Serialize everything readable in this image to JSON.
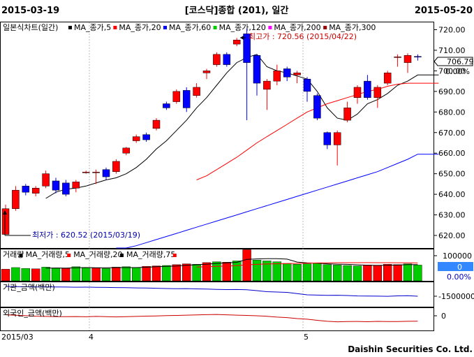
{
  "header": {
    "date_left": "2015-03-19",
    "title": "[코스닥]종합 (201), 일간",
    "date_right": "2015-05-20"
  },
  "price_panel": {
    "title": "일본식차트(일간)",
    "legend": [
      {
        "label": "MA_종가,5",
        "color": "#000000"
      },
      {
        "label": "MA_종가,20",
        "color": "#ff0000"
      },
      {
        "label": "MA_종가,60",
        "color": "#0000ff"
      },
      {
        "label": "MA_종가,120",
        "color": "#00cc00"
      },
      {
        "label": "MA_종가,200",
        "color": "#ff00ff"
      },
      {
        "label": "MA_종가,300",
        "color": "#990000"
      }
    ],
    "high_note": "최고가 : 720.56 (2015/04/22)",
    "low_note": "최저가 : 620.52 (2015/03/19)",
    "last_price": "706.79",
    "change_pct": "0.00%",
    "y_ticks": [
      "720.00",
      "710.00",
      "700.00",
      "690.00",
      "680.00",
      "670.00",
      "660.00",
      "650.00",
      "640.00",
      "630.00",
      "620.00"
    ]
  },
  "volume_panel": {
    "legend": [
      {
        "label": "거래량",
        "color": "#000000"
      },
      {
        "label": "MA_거래량,5",
        "color": "#ff0000"
      },
      {
        "label": "MA_거래량,20",
        "color": "#000000"
      },
      {
        "label": "MA_거래량,75",
        "color": "#ff0000"
      }
    ],
    "y_tick": "100000",
    "value": "0",
    "pct": "0.00%"
  },
  "foreign_panel": {
    "title": "기관_금액(백만)",
    "y_tick": "-1500000"
  },
  "foreigner_panel": {
    "title": "외국인_금액(백만)",
    "y_tick": "0"
  },
  "x_axis": [
    "2015/03",
    "4",
    "5"
  ],
  "footer": {
    "brand": "Daishin Securities Co. Ltd."
  },
  "colors": {
    "up": "#ff0000",
    "down": "#0000ff",
    "volume_up": "#ff0000",
    "volume_down": "#00cc00",
    "value_highlight": "#3388ff"
  },
  "chart_data": {
    "type": "candlestick",
    "title": "[코스닥]종합 (201), 일간",
    "ylim": [
      615,
      725
    ],
    "candles": [
      {
        "o": 620.5,
        "c": 633.0,
        "h": 635.0,
        "l": 620.5
      },
      {
        "o": 633.0,
        "c": 642.0,
        "h": 644.0,
        "l": 632.0
      },
      {
        "o": 644.0,
        "c": 641.0,
        "h": 645.0,
        "l": 639.5
      },
      {
        "o": 640.5,
        "c": 643.0,
        "h": 644.0,
        "l": 639.0
      },
      {
        "o": 644.0,
        "c": 650.0,
        "h": 651.5,
        "l": 643.0
      },
      {
        "o": 646.5,
        "c": 642.0,
        "h": 648.0,
        "l": 640.5
      },
      {
        "o": 645.5,
        "c": 640.0,
        "h": 647.0,
        "l": 639.0
      },
      {
        "o": 643.0,
        "c": 646.0,
        "h": 647.0,
        "l": 641.0
      },
      {
        "o": 650.5,
        "c": 650.8,
        "h": 651.5,
        "l": 650.0
      },
      {
        "o": 650.5,
        "c": 650.8,
        "h": 652.0,
        "l": 645.0
      },
      {
        "o": 652.0,
        "c": 648.5,
        "h": 653.0,
        "l": 647.0
      },
      {
        "o": 651.0,
        "c": 656.0,
        "h": 657.0,
        "l": 650.0
      },
      {
        "o": 660.0,
        "c": 662.5,
        "h": 663.0,
        "l": 659.0
      },
      {
        "o": 666.0,
        "c": 668.0,
        "h": 669.0,
        "l": 665.0
      },
      {
        "o": 669.0,
        "c": 666.5,
        "h": 670.0,
        "l": 665.5
      },
      {
        "o": 672.0,
        "c": 676.0,
        "h": 677.0,
        "l": 671.0
      },
      {
        "o": 684.0,
        "c": 682.0,
        "h": 685.0,
        "l": 681.0
      },
      {
        "o": 685.0,
        "c": 690.0,
        "h": 691.0,
        "l": 684.0
      },
      {
        "o": 690.5,
        "c": 682.0,
        "h": 692.0,
        "l": 680.0
      },
      {
        "o": 688.0,
        "c": 692.0,
        "h": 694.0,
        "l": 687.0
      },
      {
        "o": 699.0,
        "c": 700.0,
        "h": 701.0,
        "l": 696.0
      },
      {
        "o": 703.0,
        "c": 708.0,
        "h": 709.0,
        "l": 702.0
      },
      {
        "o": 708.0,
        "c": 703.0,
        "h": 709.0,
        "l": 702.0
      },
      {
        "o": 713.0,
        "c": 715.0,
        "h": 716.0,
        "l": 712.0
      },
      {
        "o": 718.0,
        "c": 704.0,
        "h": 720.56,
        "l": 676.0
      },
      {
        "o": 707.5,
        "c": 694.0,
        "h": 708.0,
        "l": 688.0
      },
      {
        "o": 691.0,
        "c": 695.0,
        "h": 696.0,
        "l": 681.0
      },
      {
        "o": 695.0,
        "c": 700.0,
        "h": 703.0,
        "l": 693.0
      },
      {
        "o": 701.0,
        "c": 697.0,
        "h": 702.0,
        "l": 695.0
      },
      {
        "o": 698.0,
        "c": 699.0,
        "h": 700.0,
        "l": 694.0
      },
      {
        "o": 696.0,
        "c": 690.0,
        "h": 697.0,
        "l": 685.0
      },
      {
        "o": 688.0,
        "c": 677.0,
        "h": 689.0,
        "l": 676.0
      },
      {
        "o": 670.0,
        "c": 664.0,
        "h": 670.5,
        "l": 662.0
      },
      {
        "o": 664.0,
        "c": 670.0,
        "h": 671.0,
        "l": 654.0
      },
      {
        "o": 676.0,
        "c": 682.0,
        "h": 685.0,
        "l": 675.0
      },
      {
        "o": 687.0,
        "c": 692.0,
        "h": 693.0,
        "l": 684.0
      },
      {
        "o": 695.0,
        "c": 687.0,
        "h": 698.0,
        "l": 686.0
      },
      {
        "o": 687.0,
        "c": 692.0,
        "h": 693.0,
        "l": 682.0
      },
      {
        "o": 694.0,
        "c": 699.0,
        "h": 700.0,
        "l": 693.0
      },
      {
        "o": 706.5,
        "c": 706.8,
        "h": 708.0,
        "l": 702.0
      },
      {
        "o": 704.0,
        "c": 707.5,
        "h": 708.5,
        "l": 699.0
      },
      {
        "o": 707.0,
        "c": 706.79,
        "h": 708.0,
        "l": 705.0
      }
    ],
    "ma_series": [
      {
        "name": "MA_종가,5",
        "color": "#000000",
        "values": [
          null,
          null,
          null,
          null,
          638.0,
          641.0,
          642.5,
          643.0,
          644.0,
          645.5,
          647.0,
          648.0,
          650.0,
          653.0,
          657.0,
          662.0,
          666.0,
          671.0,
          676.0,
          682.0,
          687.0,
          693.0,
          699.0,
          704.0,
          706.5,
          708.0,
          702.0,
          700.0,
          699.0,
          697.5,
          696.0,
          690.0,
          682.0,
          677.0,
          676.0,
          679.0,
          684.0,
          686.0,
          689.0,
          693.0,
          695.0,
          698.0
        ]
      },
      {
        "name": "MA_종가,20",
        "color": "#ff0000",
        "values": [
          null,
          null,
          null,
          null,
          null,
          null,
          null,
          null,
          null,
          null,
          null,
          null,
          null,
          null,
          null,
          null,
          null,
          null,
          null,
          647.0,
          649.0,
          652.0,
          655.0,
          658.0,
          661.5,
          665.0,
          668.0,
          671.0,
          674.0,
          677.0,
          680.0,
          682.0,
          684.0,
          685.5,
          687.0,
          688.5,
          690.0,
          691.0,
          692.5,
          693.5,
          694.0,
          694.0
        ]
      },
      {
        "name": "MA_종가,60",
        "color": "#0000ff",
        "values": [
          null,
          null,
          null,
          null,
          null,
          null,
          null,
          null,
          null,
          null,
          null,
          612.0,
          613.5,
          615.0,
          616.5,
          618.0,
          619.5,
          621.0,
          622.5,
          624.0,
          625.5,
          627.0,
          628.5,
          630.0,
          631.5,
          633.0,
          634.5,
          636.0,
          637.5,
          639.0,
          640.5,
          642.0,
          643.5,
          645.0,
          646.5,
          648.0,
          649.5,
          651.0,
          653.0,
          655.0,
          657.0,
          659.5
        ]
      }
    ],
    "volume": [
      {
        "v": 28000,
        "up": true
      },
      {
        "v": 32000,
        "up": false
      },
      {
        "v": 30000,
        "up": false
      },
      {
        "v": 29000,
        "up": true
      },
      {
        "v": 33000,
        "up": false
      },
      {
        "v": 31000,
        "up": false
      },
      {
        "v": 30000,
        "up": true
      },
      {
        "v": 34000,
        "up": false
      },
      {
        "v": 32000,
        "up": false
      },
      {
        "v": 31000,
        "up": true
      },
      {
        "v": 30000,
        "up": false
      },
      {
        "v": 33000,
        "up": true
      },
      {
        "v": 34000,
        "up": false
      },
      {
        "v": 32000,
        "up": false
      },
      {
        "v": 35000,
        "up": true
      },
      {
        "v": 36000,
        "up": true
      },
      {
        "v": 37000,
        "up": false
      },
      {
        "v": 39000,
        "up": true
      },
      {
        "v": 41000,
        "up": true
      },
      {
        "v": 40000,
        "up": false
      },
      {
        "v": 44000,
        "up": true
      },
      {
        "v": 46000,
        "up": false
      },
      {
        "v": 45000,
        "up": true
      },
      {
        "v": 48000,
        "up": false
      },
      {
        "v": 75000,
        "up": true
      },
      {
        "v": 50000,
        "up": false
      },
      {
        "v": 48000,
        "up": false
      },
      {
        "v": 46000,
        "up": false
      },
      {
        "v": 42000,
        "up": false
      },
      {
        "v": 40000,
        "up": false
      },
      {
        "v": 41000,
        "up": false
      },
      {
        "v": 43000,
        "up": false
      },
      {
        "v": 39000,
        "up": false
      },
      {
        "v": 38000,
        "up": false
      },
      {
        "v": 37000,
        "up": false
      },
      {
        "v": 36000,
        "up": false
      },
      {
        "v": 38000,
        "up": true
      },
      {
        "v": 37000,
        "up": true
      },
      {
        "v": 40000,
        "up": true
      },
      {
        "v": 39000,
        "up": true
      },
      {
        "v": 41000,
        "up": false
      },
      {
        "v": 38000,
        "up": false
      }
    ],
    "institution_amount": [
      -1360000,
      -1362000,
      -1365000,
      -1368000,
      -1366000,
      -1367000,
      -1369000,
      -1371000,
      -1370000,
      -1372000,
      -1374000,
      -1376000,
      -1378000,
      -1381000,
      -1383000,
      -1386000,
      -1390000,
      -1392000,
      -1391000,
      -1395000,
      -1398000,
      -1402000,
      -1405000,
      -1404000,
      -1407000,
      -1420000,
      -1435000,
      -1440000,
      -1445000,
      -1462000,
      -1480000,
      -1484000,
      -1487000,
      -1486000,
      -1490000,
      -1496000,
      -1497000,
      -1499000,
      -1501000,
      -1495000,
      -1492000,
      -1500000
    ],
    "foreigner_amount": [
      150000,
      140000,
      130000,
      120000,
      115000,
      112000,
      110000,
      113000,
      108000,
      116000,
      111000,
      106000,
      111000,
      116000,
      121000,
      126000,
      131000,
      136000,
      141000,
      146000,
      151000,
      156000,
      148000,
      141000,
      136000,
      128000,
      118000,
      101000,
      91000,
      71000,
      58000,
      36000,
      16000,
      6000,
      11000,
      13000,
      7000,
      14000,
      11000,
      10000,
      15000,
      17000
    ]
  }
}
